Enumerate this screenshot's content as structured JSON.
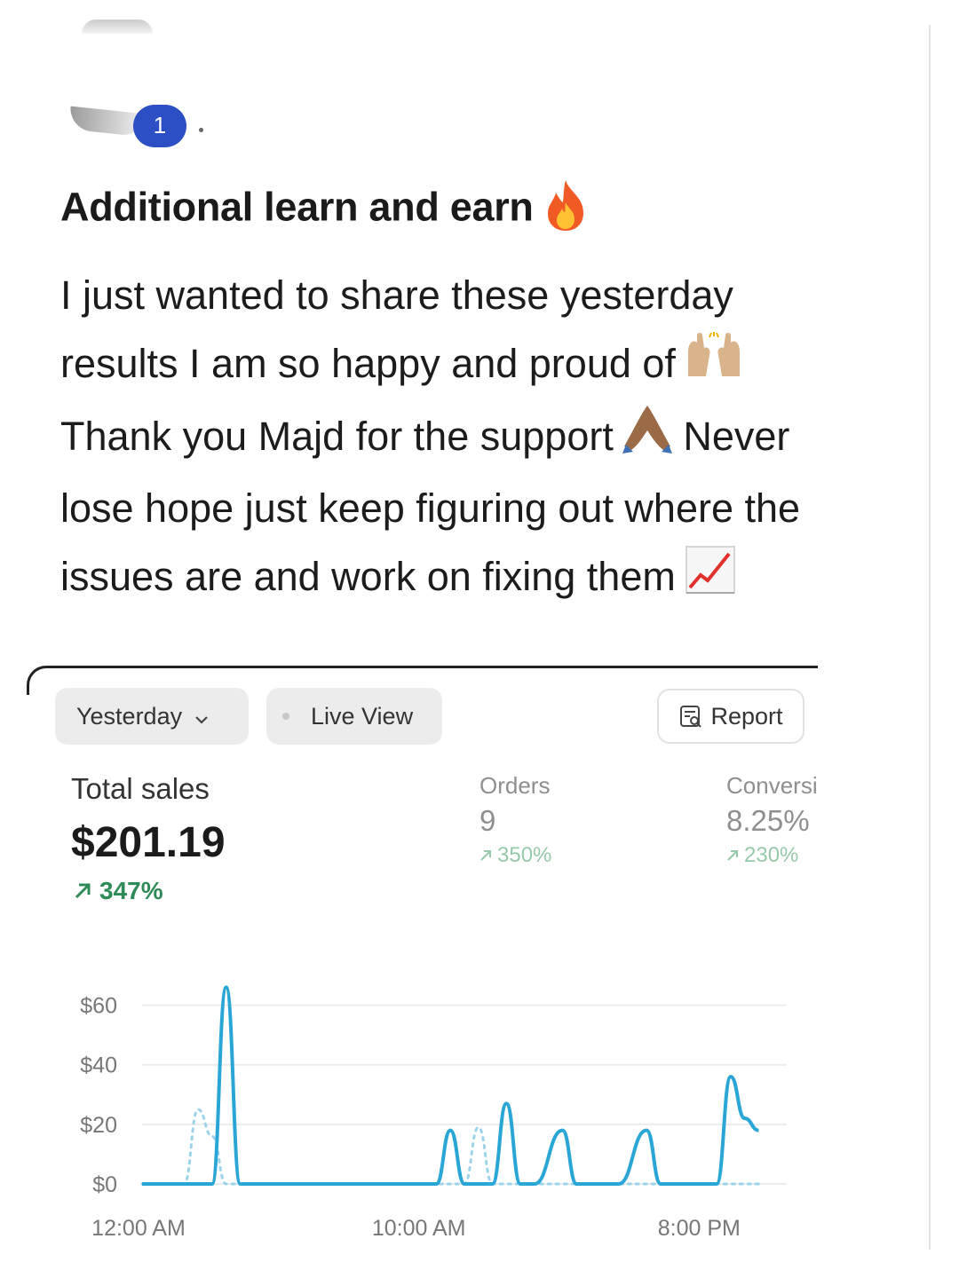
{
  "post": {
    "badge_count": "1",
    "title": "Additional learn and earn",
    "title_emoji": "fire-icon",
    "body_lines": [
      "I just wanted to share these yesterday",
      "results I am so happy and proud of",
      "Thank you Majd for the support",
      "Never",
      "lose hope just keep figuring out where the",
      "issues are and work on fixing them"
    ],
    "emojis": [
      "raising-hands-icon",
      "folded-hands-icon",
      "chart-increasing-icon"
    ]
  },
  "analytics": {
    "date_filter": "Yesterday",
    "live_view_label": "Live View",
    "report_label": "Report",
    "total_sales": {
      "label": "Total sales",
      "value": "$201.19",
      "change": "347%"
    },
    "orders": {
      "label": "Orders",
      "value": "9",
      "change": "350%"
    },
    "conversion": {
      "label": "Conversi",
      "value": "8.25%",
      "change": "230%"
    },
    "colors": {
      "accent": "#2aa6d6",
      "positive": "#2e8b57",
      "comparison": "#9bd3ea"
    }
  },
  "chart_data": {
    "type": "line",
    "y_ticks": [
      "$60",
      "$40",
      "$20",
      "$0"
    ],
    "x_ticks": [
      "12:00 AM",
      "10:00 AM",
      "8:00 PM"
    ],
    "ylim": [
      0,
      70
    ],
    "xlim": [
      0,
      23
    ],
    "grid": true,
    "series": [
      {
        "points": [
          [
            0,
            0
          ],
          [
            1,
            0
          ],
          [
            2,
            0
          ],
          [
            2.5,
            0
          ],
          [
            3,
            66
          ],
          [
            3.5,
            0
          ],
          [
            4,
            0
          ],
          [
            5,
            0
          ],
          [
            6,
            0
          ],
          [
            7,
            0
          ],
          [
            8,
            0
          ],
          [
            9,
            0
          ],
          [
            10,
            0
          ],
          [
            10.5,
            0
          ],
          [
            11,
            18
          ],
          [
            11.5,
            0
          ],
          [
            12,
            0
          ],
          [
            12.5,
            0
          ],
          [
            13,
            27
          ],
          [
            13.5,
            0
          ],
          [
            14,
            0
          ],
          [
            15,
            18
          ],
          [
            15.5,
            0
          ],
          [
            16,
            0
          ],
          [
            17,
            0
          ],
          [
            18,
            18
          ],
          [
            18.5,
            0
          ],
          [
            19,
            0
          ],
          [
            20,
            0
          ],
          [
            20.5,
            0
          ],
          [
            21,
            36
          ],
          [
            21.5,
            22
          ],
          [
            22,
            18
          ]
        ]
      },
      {
        "points": [
          [
            0,
            0
          ],
          [
            1,
            0
          ],
          [
            1.5,
            0
          ],
          [
            2,
            25
          ],
          [
            2.5,
            16
          ],
          [
            3,
            0
          ],
          [
            4,
            0
          ],
          [
            5,
            0
          ],
          [
            6,
            0
          ],
          [
            7,
            0
          ],
          [
            8,
            0
          ],
          [
            9,
            0
          ],
          [
            10,
            0
          ],
          [
            10.5,
            0
          ],
          [
            11,
            0
          ],
          [
            11.5,
            0
          ],
          [
            12,
            19
          ],
          [
            12.5,
            0
          ],
          [
            13,
            0
          ],
          [
            14,
            0
          ],
          [
            15,
            0
          ],
          [
            16,
            0
          ],
          [
            17,
            0
          ],
          [
            18,
            0
          ],
          [
            19,
            0
          ],
          [
            20,
            0
          ],
          [
            21,
            0
          ],
          [
            22,
            0
          ]
        ]
      }
    ]
  }
}
